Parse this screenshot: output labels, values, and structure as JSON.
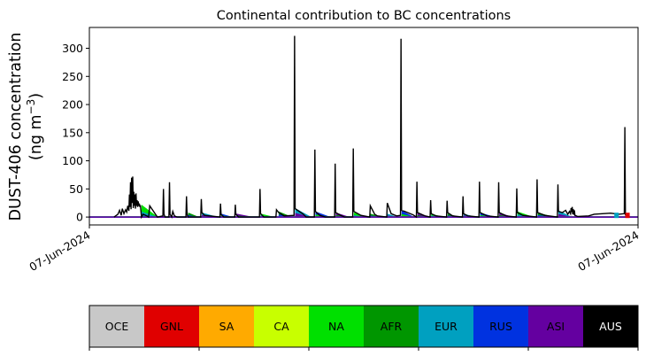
{
  "chart_data": {
    "type": "area",
    "title": "Continental contribution to BC concentrations",
    "ylabel_line1": "DUST-406 concentration",
    "ylabel_line2_prefix": "(ng m",
    "ylabel_line2_sup": "−3",
    "ylabel_line2_suffix": ")",
    "xlabel": "",
    "ylim": [
      -14,
      337
    ],
    "yticks": [
      0,
      50,
      100,
      150,
      200,
      250,
      300
    ],
    "xticks": [
      "07-Jun-2024",
      "07-Jun-2024"
    ],
    "grid": false,
    "x_range": [
      0,
      1000
    ],
    "baseline_series": [
      {
        "name": "GNL",
        "color": "#e00000",
        "x": [
          0,
          1000
        ],
        "values": [
          0,
          0
        ]
      },
      {
        "name": "CA",
        "color": "#c8ff00",
        "x": [
          0,
          1000
        ],
        "values": [
          0,
          0
        ]
      },
      {
        "name": "NA",
        "color": "#00e000",
        "x": [
          0,
          1000
        ],
        "values": [
          0,
          0
        ]
      },
      {
        "name": "AFR",
        "color": "#009600",
        "x": [
          0,
          1000
        ],
        "values": [
          0,
          0
        ]
      },
      {
        "name": "EUR",
        "color": "#00a0c0",
        "x": [
          0,
          1000
        ],
        "values": [
          0,
          0
        ]
      },
      {
        "name": "RUS",
        "color": "#0032e0",
        "x": [
          0,
          1000
        ],
        "values": [
          0,
          0
        ]
      },
      {
        "name": "ASI",
        "color": "#6400a0",
        "x": [
          0,
          1000
        ],
        "values": [
          0,
          0
        ]
      }
    ],
    "end_markers": [
      {
        "name": "EUR",
        "color": "#00a0c0",
        "x": 960,
        "value": 3
      },
      {
        "name": "GNL",
        "color": "#e00000",
        "x": 980,
        "value": 3
      }
    ],
    "total_line": {
      "name": "total",
      "color": "#000000",
      "points": [
        [
          45,
          0
        ],
        [
          52,
          5
        ],
        [
          55,
          12
        ],
        [
          58,
          3
        ],
        [
          60,
          15
        ],
        [
          63,
          6
        ],
        [
          66,
          13
        ],
        [
          68,
          9
        ],
        [
          70,
          20
        ],
        [
          72,
          11
        ],
        [
          73,
          40
        ],
        [
          74,
          18
        ],
        [
          75,
          62
        ],
        [
          76,
          14
        ],
        [
          77,
          70
        ],
        [
          78,
          25
        ],
        [
          79,
          72
        ],
        [
          80,
          16
        ],
        [
          81,
          45
        ],
        [
          82,
          20
        ],
        [
          83,
          40
        ],
        [
          84,
          15
        ],
        [
          85,
          42
        ],
        [
          86,
          20
        ],
        [
          87,
          30
        ],
        [
          88,
          18
        ],
        [
          89,
          28
        ],
        [
          90,
          20
        ],
        [
          91,
          24
        ],
        [
          92,
          18
        ],
        [
          93,
          21
        ],
        [
          95,
          0
        ],
        [
          98,
          5
        ],
        [
          105,
          2
        ],
        [
          108,
          0
        ],
        [
          110,
          20
        ],
        [
          124,
          0
        ],
        [
          134,
          2
        ],
        [
          135,
          50
        ],
        [
          136,
          5
        ],
        [
          138,
          0
        ],
        [
          145,
          0
        ],
        [
          146,
          62
        ],
        [
          147,
          5
        ],
        [
          150,
          0
        ],
        [
          152,
          10
        ],
        [
          155,
          2
        ],
        [
          160,
          0
        ],
        [
          176,
          0
        ],
        [
          177,
          37
        ],
        [
          178,
          5
        ],
        [
          180,
          0
        ],
        [
          203,
          0
        ],
        [
          204,
          32
        ],
        [
          205,
          8
        ],
        [
          210,
          3
        ],
        [
          238,
          0
        ],
        [
          239,
          24
        ],
        [
          240,
          5
        ],
        [
          245,
          0
        ],
        [
          265,
          0
        ],
        [
          266,
          22
        ],
        [
          267,
          5
        ],
        [
          272,
          0
        ],
        [
          310,
          0
        ],
        [
          311,
          50
        ],
        [
          312,
          6
        ],
        [
          318,
          0
        ],
        [
          340,
          0
        ],
        [
          341,
          13
        ],
        [
          345,
          8
        ],
        [
          355,
          2
        ],
        [
          373,
          3
        ],
        [
          374,
          322
        ],
        [
          375,
          15
        ],
        [
          390,
          5
        ],
        [
          395,
          0
        ],
        [
          410,
          0
        ],
        [
          411,
          120
        ],
        [
          412,
          10
        ],
        [
          420,
          3
        ],
        [
          430,
          0
        ],
        [
          447,
          0
        ],
        [
          448,
          95
        ],
        [
          449,
          8
        ],
        [
          458,
          3
        ],
        [
          465,
          0
        ],
        [
          480,
          0
        ],
        [
          481,
          122
        ],
        [
          482,
          10
        ],
        [
          495,
          3
        ],
        [
          511,
          0
        ],
        [
          512,
          20
        ],
        [
          520,
          5
        ],
        [
          525,
          2
        ],
        [
          542,
          0
        ],
        [
          543,
          25
        ],
        [
          550,
          6
        ],
        [
          560,
          2
        ],
        [
          567,
          3
        ],
        [
          568,
          317
        ],
        [
          569,
          12
        ],
        [
          575,
          10
        ],
        [
          590,
          4
        ],
        [
          596,
          0
        ],
        [
          597,
          63
        ],
        [
          598,
          8
        ],
        [
          612,
          2
        ],
        [
          621,
          0
        ],
        [
          622,
          30
        ],
        [
          623,
          6
        ],
        [
          632,
          2
        ],
        [
          651,
          0
        ],
        [
          652,
          29
        ],
        [
          653,
          8
        ],
        [
          662,
          2
        ],
        [
          680,
          0
        ],
        [
          681,
          37
        ],
        [
          682,
          6
        ],
        [
          690,
          2
        ],
        [
          710,
          0
        ],
        [
          711,
          63
        ],
        [
          712,
          8
        ],
        [
          725,
          2
        ],
        [
          745,
          0
        ],
        [
          746,
          62
        ],
        [
          747,
          8
        ],
        [
          760,
          2
        ],
        [
          778,
          0
        ],
        [
          779,
          51
        ],
        [
          780,
          8
        ],
        [
          790,
          3
        ],
        [
          815,
          0
        ],
        [
          816,
          67
        ],
        [
          817,
          8
        ],
        [
          830,
          3
        ],
        [
          853,
          0
        ],
        [
          854,
          58
        ],
        [
          855,
          10
        ],
        [
          862,
          8
        ],
        [
          868,
          12
        ],
        [
          872,
          5
        ],
        [
          875,
          10
        ],
        [
          877,
          6
        ],
        [
          878,
          16
        ],
        [
          879,
          9
        ],
        [
          880,
          18
        ],
        [
          881,
          5
        ],
        [
          882,
          14
        ],
        [
          883,
          4
        ],
        [
          884,
          12
        ],
        [
          885,
          3
        ],
        [
          888,
          2
        ],
        [
          890,
          1
        ],
        [
          910,
          2
        ],
        [
          920,
          5
        ],
        [
          935,
          6
        ],
        [
          950,
          7
        ],
        [
          965,
          5
        ],
        [
          975,
          6
        ],
        [
          976,
          160
        ],
        [
          977,
          3
        ]
      ]
    },
    "spike_fills": [
      {
        "x0": 95,
        "x1": 125,
        "peak": 22
      },
      {
        "x0": 180,
        "x1": 200,
        "peak": 8
      },
      {
        "x0": 205,
        "x1": 235,
        "peak": 8
      },
      {
        "x0": 240,
        "x1": 262,
        "peak": 6
      },
      {
        "x0": 268,
        "x1": 300,
        "peak": 6
      },
      {
        "x0": 312,
        "x1": 338,
        "peak": 6
      },
      {
        "x0": 345,
        "x1": 370,
        "peak": 10
      },
      {
        "x0": 375,
        "x1": 405,
        "peak": 16
      },
      {
        "x0": 412,
        "x1": 440,
        "peak": 10
      },
      {
        "x0": 449,
        "x1": 475,
        "peak": 8
      },
      {
        "x0": 482,
        "x1": 505,
        "peak": 8
      },
      {
        "x0": 512,
        "x1": 535,
        "peak": 6
      },
      {
        "x0": 543,
        "x1": 562,
        "peak": 6
      },
      {
        "x0": 569,
        "x1": 592,
        "peak": 12
      },
      {
        "x0": 598,
        "x1": 618,
        "peak": 8
      },
      {
        "x0": 623,
        "x1": 645,
        "peak": 6
      },
      {
        "x0": 653,
        "x1": 675,
        "peak": 6
      },
      {
        "x0": 682,
        "x1": 705,
        "peak": 6
      },
      {
        "x0": 712,
        "x1": 740,
        "peak": 8
      },
      {
        "x0": 747,
        "x1": 772,
        "peak": 8
      },
      {
        "x0": 780,
        "x1": 810,
        "peak": 10
      },
      {
        "x0": 817,
        "x1": 848,
        "peak": 8
      },
      {
        "x0": 855,
        "x1": 880,
        "peak": 12
      }
    ],
    "colorbar": {
      "categories": [
        "OCE",
        "GNL",
        "SA",
        "CA",
        "NA",
        "AFR",
        "EUR",
        "RUS",
        "ASI",
        "AUS"
      ],
      "colors": [
        "#c8c8c8",
        "#e00000",
        "#ffaa00",
        "#c8ff00",
        "#00e000",
        "#009600",
        "#00a0c0",
        "#0032e0",
        "#6400a0",
        "#000000"
      ],
      "text_colors": [
        "#000000",
        "#000000",
        "#000000",
        "#000000",
        "#000000",
        "#000000",
        "#000000",
        "#000000",
        "#000000",
        "#ffffff"
      ]
    }
  }
}
